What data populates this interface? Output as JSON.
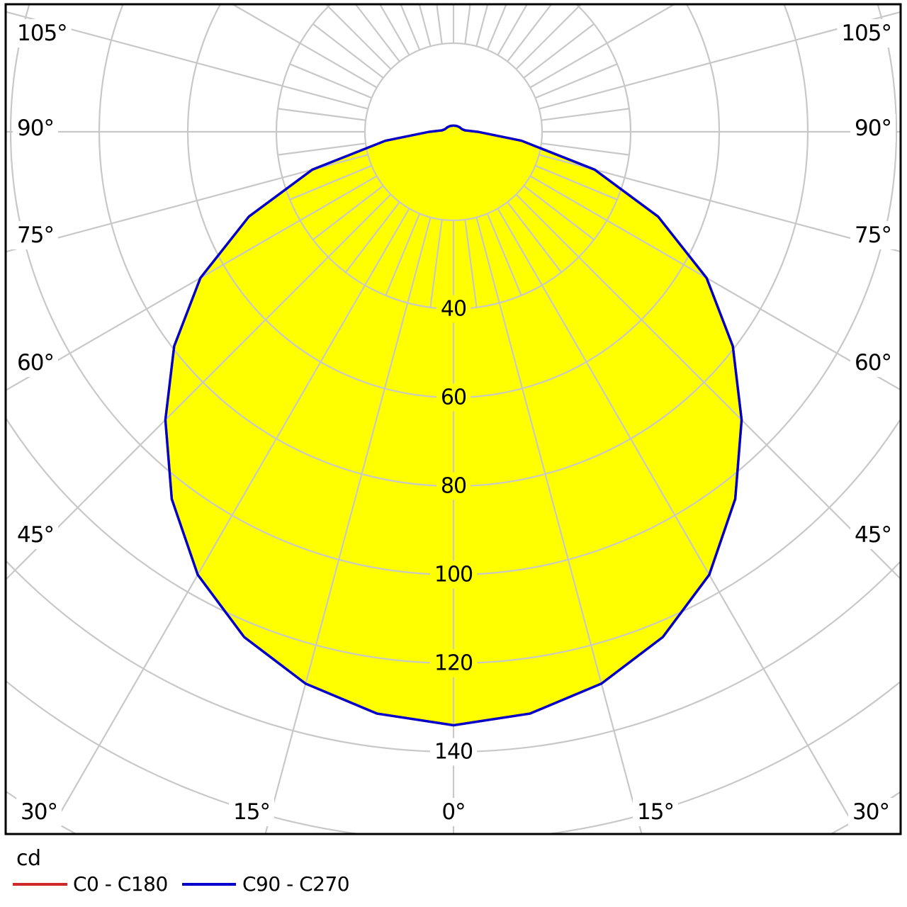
{
  "chart": {
    "units_label": "cd"
  },
  "legend": [
    {
      "label": "C0 - C180",
      "color": "#d02828"
    },
    {
      "label": "C90 - C270",
      "color": "#0000cd"
    }
  ],
  "colors": {
    "background": "#ffffff",
    "grid": "#c8c8c8",
    "frame": "#000000",
    "text": "#000000",
    "beam_fill": "#ffff00"
  },
  "chart_data": {
    "type": "line",
    "coordinate_system": "polar",
    "title": "",
    "units": "cd",
    "angle_tick_labels_deg": [
      0,
      15,
      30,
      45,
      60,
      75,
      90,
      105
    ],
    "angle_labels_mirrored_both_sides": true,
    "radial_tick_labels_cd": [
      40,
      60,
      80,
      100,
      120,
      140
    ],
    "grid": {
      "arc_step_cd": 20,
      "arc_max_cd": 180,
      "ray_major_step_deg": 15,
      "ray_minor_step_deg": 7.5,
      "ray_start_cd": 20,
      "ray_minor_end_cd": 40
    },
    "series": [
      {
        "name": "C0 - C180",
        "color": "#d02828",
        "angles_deg": [
          0,
          7.5,
          15,
          22.5,
          30,
          37.5,
          45,
          52.5,
          60,
          67.5,
          75,
          82.5,
          90,
          97.5,
          105,
          112.5,
          120,
          127.5,
          135,
          142.5,
          150,
          157.5,
          165,
          172.5,
          180
        ],
        "values_cd": [
          134,
          132.5,
          129,
          123.5,
          115.5,
          104.5,
          92,
          79.5,
          66,
          50,
          33,
          15.5,
          5.5,
          2.6,
          2.1,
          1.9,
          1.8,
          1.7,
          1.6,
          1.55,
          1.5,
          1.45,
          1.4,
          1.4,
          1.4
        ],
        "symmetric": true
      },
      {
        "name": "C90 - C270",
        "color": "#0000cd",
        "fill": "#ffff00",
        "angles_deg": [
          0,
          7.5,
          15,
          22.5,
          30,
          37.5,
          45,
          52.5,
          60,
          67.5,
          75,
          82.5,
          90,
          97.5,
          105,
          112.5,
          120,
          127.5,
          135,
          142.5,
          150,
          157.5,
          165,
          172.5,
          180
        ],
        "values_cd": [
          134,
          132.5,
          129,
          123.5,
          115.5,
          104.5,
          92,
          79.5,
          66,
          50,
          33,
          15.5,
          5.5,
          2.6,
          2.1,
          1.9,
          1.8,
          1.7,
          1.6,
          1.55,
          1.5,
          1.45,
          1.4,
          1.4,
          1.4
        ],
        "symmetric": true
      }
    ]
  }
}
